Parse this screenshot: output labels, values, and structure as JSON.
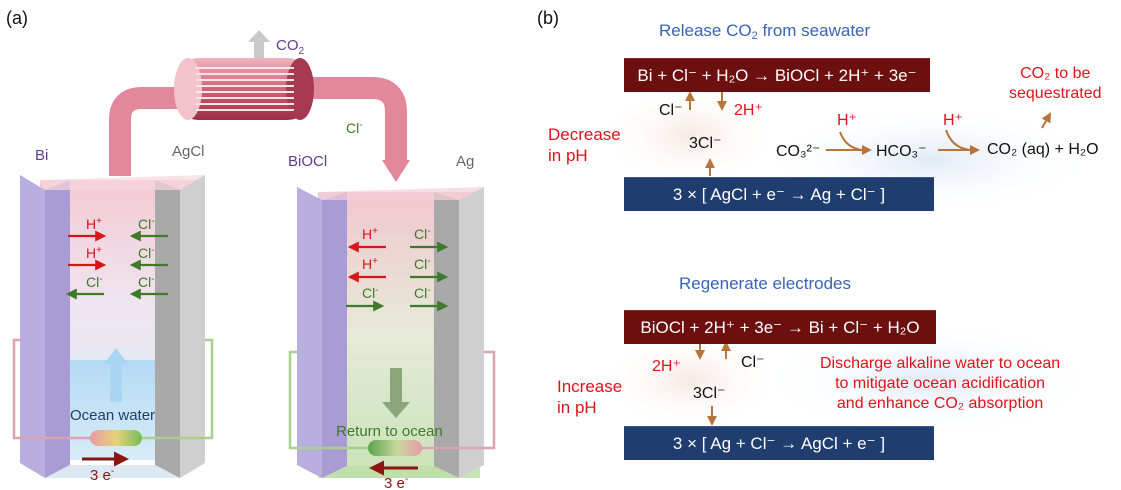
{
  "panel_a": {
    "label": "(a)",
    "co2": "CO",
    "co2_sub": "2",
    "left_cell": {
      "anode": "Bi",
      "cathode": "AgCl",
      "ions": [
        {
          "h": "H",
          "h_sup": "+",
          "cl": "Cl",
          "cl_sup": "-"
        },
        {
          "h": "H",
          "h_sup": "+",
          "cl": "Cl",
          "cl_sup": "-"
        },
        {
          "h": "",
          "h_sup": "",
          "cl": "Cl",
          "cl_sup": "-"
        }
      ],
      "inlet": "Ocean water",
      "electrons": "3 e",
      "electrons_sup": "-"
    },
    "right_cell": {
      "anode": "BiOCl",
      "cathode": "Ag",
      "transfer_ion": "Cl",
      "transfer_ion_sup": "-",
      "outlet": "Return to ocean",
      "electrons": "3 e",
      "electrons_sup": "-"
    }
  },
  "panel_b": {
    "label": "(b)",
    "top": {
      "title_a": "Release CO",
      "title_sub": "2",
      "title_b": " from seawater",
      "anode_reaction": "Bi + Cl⁻ + H₂O → BiOCl + 2H⁺ + 3e⁻",
      "cl_out": "Cl⁻",
      "h_out": "2H⁺",
      "three_cl": "3Cl⁻",
      "ph_change_1": "Decrease",
      "ph_change_2": "in pH",
      "carbonate": "CO₃²⁻",
      "h_plus_1": "H⁺",
      "bicarbonate": "HCO₃⁻",
      "h_plus_2": "H⁺",
      "product": "CO₂ (aq) + H₂O",
      "sequester_1": "CO₂ to be",
      "sequester_2": "sequestrated",
      "cathode_reaction": "3 × [ AgCl + e⁻  → Ag + Cl⁻ ]"
    },
    "bottom": {
      "title": "Regenerate electrodes",
      "anode_reaction": "BiOCl + 2H⁺ + 3e⁻ → Bi + Cl⁻ + H₂O",
      "h_in": "2H⁺",
      "cl_in": "Cl⁻",
      "three_cl": "3Cl⁻",
      "ph_change_1": "Increase",
      "ph_change_2": "in pH",
      "discharge_1": "Discharge alkaline water to ocean",
      "discharge_2": "to mitigate ocean acidification",
      "discharge_3": "and enhance CO₂ absorption",
      "cathode_reaction": "3 × [ Ag + Cl⁻ → AgCl + e⁻ ]"
    }
  },
  "colors": {
    "red_text": "#e0131a",
    "green_text": "#3f7a2a",
    "blue_title": "#3a63b5",
    "dark_red_box": "#6b0f0f",
    "dark_blue_box": "#1f3d6e",
    "reaction_arrow": "#b8743a",
    "electrode_bi": "#a99bd4",
    "electrode_ag": "#9a9a9a"
  }
}
